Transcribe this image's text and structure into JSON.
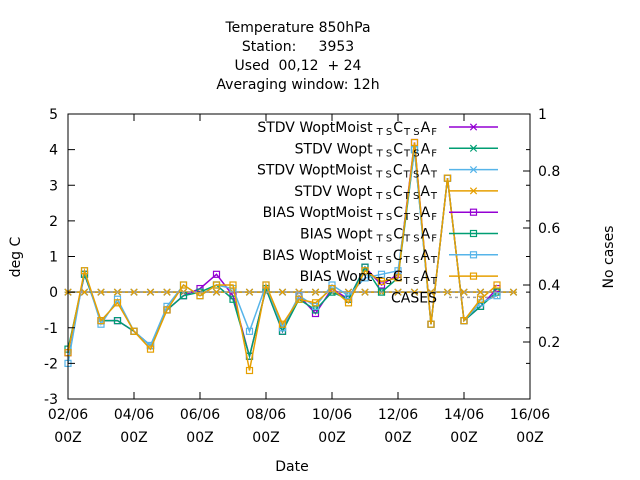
{
  "chart_data": {
    "type": "line",
    "title_lines": [
      "Temperature 850hPa",
      "Station:     3953",
      "Used  00,12  + 24",
      "Averaging window: 12h"
    ],
    "xlabel": "Date",
    "ylabel": "deg C",
    "y2label": "No cases",
    "ylim": [
      -3,
      5
    ],
    "y2lim": [
      0,
      1
    ],
    "yticks": [
      "-3",
      "-2",
      "-1",
      "0",
      "1",
      "2",
      "3",
      "4",
      "5"
    ],
    "y2ticks": [
      "0.2",
      "0.4",
      "0.6",
      "0.8",
      "1"
    ],
    "xticks": [
      {
        "date": "02/06",
        "time": "00Z"
      },
      {
        "date": "04/06",
        "time": "00Z"
      },
      {
        "date": "06/06",
        "time": "00Z"
      },
      {
        "date": "08/06",
        "time": "00Z"
      },
      {
        "date": "10/06",
        "time": "00Z"
      },
      {
        "date": "12/06",
        "time": "00Z"
      },
      {
        "date": "14/06",
        "time": "00Z"
      },
      {
        "date": "16/06",
        "time": "00Z"
      }
    ],
    "x": [
      "02/06 00Z",
      "02/06 12Z",
      "03/06 00Z",
      "03/06 12Z",
      "04/06 00Z",
      "04/06 12Z",
      "05/06 00Z",
      "05/06 12Z",
      "06/06 00Z",
      "06/06 12Z",
      "07/06 00Z",
      "07/06 12Z",
      "08/06 00Z",
      "08/06 12Z",
      "09/06 00Z",
      "09/06 12Z",
      "10/06 00Z",
      "10/06 12Z",
      "11/06 00Z",
      "11/06 12Z",
      "12/06 00Z",
      "12/06 12Z",
      "13/06 00Z",
      "13/06 12Z",
      "14/06 00Z",
      "14/06 12Z",
      "15/06 00Z",
      "15/06 12Z"
    ],
    "legend_position": "top-right",
    "series": [
      {
        "label": {
          "main": "STDV WoptMoist",
          "subs": [
            "T",
            "S",
            "C",
            "T",
            "S",
            "A",
            "F"
          ]
        },
        "color": "#9400d3",
        "marker": "x",
        "values": [
          0,
          0,
          0,
          0,
          0,
          0,
          0,
          0,
          0,
          0,
          0,
          0,
          0,
          0,
          0,
          0,
          0,
          0,
          0,
          0,
          0,
          0,
          0,
          0,
          0,
          0,
          0,
          0
        ]
      },
      {
        "label": {
          "main": "STDV Wopt",
          "subs": [
            "T",
            "S",
            "C",
            "T",
            "S",
            "A",
            "F"
          ]
        },
        "color": "#009e73",
        "marker": "x",
        "values": [
          0,
          0,
          0,
          0,
          0,
          0,
          0,
          0,
          0,
          0,
          0,
          0,
          0,
          0,
          0,
          0,
          0,
          0,
          0,
          0,
          0,
          0,
          0,
          0,
          0,
          0,
          0,
          0
        ]
      },
      {
        "label": {
          "main": "STDV WoptMoist",
          "subs": [
            "T",
            "S",
            "C",
            "T",
            "S",
            "A",
            "T"
          ]
        },
        "color": "#56b4e9",
        "marker": "x",
        "values": [
          0,
          0,
          0,
          0,
          0,
          0,
          0,
          0,
          0,
          0,
          0,
          0,
          0,
          0,
          0,
          0,
          0,
          0,
          0,
          0,
          0,
          0,
          0,
          0,
          0,
          0,
          0,
          0
        ]
      },
      {
        "label": {
          "main": "STDV Wopt",
          "subs": [
            "T",
            "S",
            "C",
            "T",
            "S",
            "A",
            "T"
          ]
        },
        "color": "#e69f00",
        "marker": "x",
        "values": [
          0,
          0,
          0,
          0,
          0,
          0,
          0,
          0,
          0,
          0,
          0,
          0,
          0,
          0,
          0,
          0,
          0,
          0,
          0,
          0,
          0,
          0,
          0,
          0,
          0,
          0,
          0,
          0
        ]
      },
      {
        "label": {
          "main": "BIAS WoptMoist",
          "subs": [
            "T",
            "S",
            "C",
            "T",
            "S",
            "A",
            "F"
          ]
        },
        "color": "#9400d3",
        "marker": "square",
        "values": [
          -1.7,
          0.5,
          -0.8,
          -0.8,
          -1.1,
          -1.5,
          -0.5,
          -0.1,
          0.1,
          0.5,
          -0.1,
          -1.8,
          0.1,
          -1.1,
          -0.1,
          -0.6,
          0.1,
          -0.2,
          0.7,
          0.2,
          0.5,
          4.2,
          -0.9,
          3.2,
          -0.8,
          -0.4,
          0.1,
          null
        ]
      },
      {
        "label": {
          "main": "BIAS Wopt",
          "subs": [
            "T",
            "S",
            "C",
            "T",
            "S",
            "A",
            "F"
          ]
        },
        "color": "#009e73",
        "marker": "square",
        "values": [
          -1.6,
          0.5,
          -0.8,
          -0.8,
          -1.1,
          -1.5,
          -0.5,
          -0.1,
          0.0,
          0.2,
          -0.2,
          -1.8,
          0.1,
          -1.1,
          -0.2,
          -0.5,
          0.0,
          -0.2,
          0.7,
          0.0,
          0.4,
          4.0,
          -0.9,
          3.2,
          -0.8,
          -0.4,
          0.0,
          null
        ]
      },
      {
        "label": {
          "main": "BIAS WoptMoist",
          "subs": [
            "T",
            "S",
            "C",
            "T",
            "S",
            "A",
            "T"
          ]
        },
        "color": "#56b4e9",
        "marker": "square",
        "values": [
          -2.0,
          0.6,
          -0.9,
          -0.2,
          -1.1,
          -1.5,
          -0.4,
          0.2,
          -0.1,
          0.2,
          0.1,
          -1.1,
          0.2,
          -1.0,
          -0.1,
          -0.4,
          0.2,
          -0.1,
          0.4,
          0.5,
          0.6,
          4.0,
          -0.9,
          3.2,
          -0.8,
          -0.3,
          -0.1,
          null
        ]
      },
      {
        "label": {
          "main": "BIAS Wopt",
          "subs": [
            "T",
            "S",
            "C",
            "T",
            "S",
            "A",
            "T"
          ]
        },
        "color": "#e69f00",
        "marker": "square",
        "values": [
          -1.7,
          0.6,
          -0.8,
          -0.3,
          -1.1,
          -1.6,
          -0.5,
          0.2,
          -0.1,
          0.2,
          0.2,
          -2.2,
          0.2,
          -0.9,
          -0.2,
          -0.3,
          0.1,
          -0.3,
          0.6,
          0.3,
          0.4,
          4.2,
          -0.9,
          3.2,
          -0.8,
          -0.2,
          0.2,
          null
        ]
      },
      {
        "label": {
          "main": "CASES",
          "subs": []
        },
        "color": "#a0a0a0",
        "marker": "none",
        "dashed": true,
        "values": [
          0,
          0,
          0,
          0,
          0,
          0,
          0,
          0,
          0,
          0,
          0,
          0,
          0,
          0,
          0,
          0,
          0,
          0,
          0,
          0,
          0,
          0,
          0,
          0,
          0,
          0,
          0,
          0
        ]
      }
    ]
  }
}
